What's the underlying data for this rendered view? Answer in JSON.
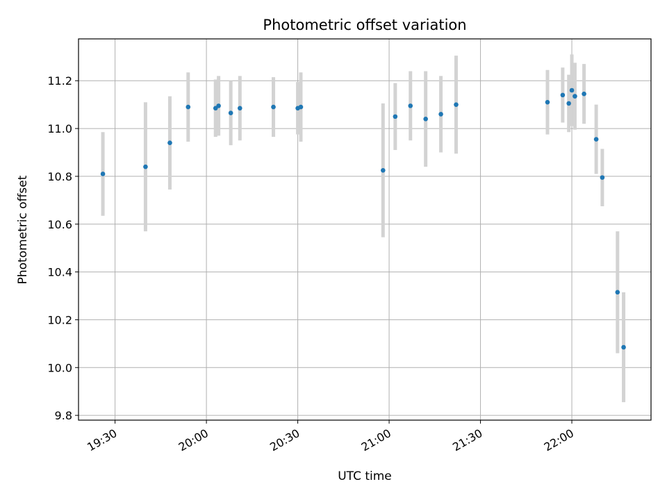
{
  "chart_data": {
    "type": "scatter",
    "title": "Photometric offset variation",
    "xlabel": "UTC time",
    "ylabel": "Photometric offset",
    "x_unit": "UTC time (HH:MM)",
    "xlim": [
      "19:18",
      "22:26"
    ],
    "ylim": [
      9.78,
      11.375
    ],
    "x_ticks": [
      "19:30",
      "20:00",
      "20:30",
      "21:00",
      "21:30",
      "22:00"
    ],
    "y_ticks": [
      9.8,
      10.0,
      10.2,
      10.4,
      10.6,
      10.8,
      11.0,
      11.2
    ],
    "y_tick_labels": [
      "9.8",
      "10.0",
      "10.2",
      "10.4",
      "10.6",
      "10.8",
      "11.0",
      "11.2"
    ],
    "grid": true,
    "point_color": "#1f77b4",
    "errorbar_color": "#d3d3d3",
    "points": [
      {
        "t": "19:26",
        "y": 10.81,
        "err": 0.175
      },
      {
        "t": "19:40",
        "y": 10.84,
        "err": 0.27
      },
      {
        "t": "19:48",
        "y": 10.94,
        "err": 0.195
      },
      {
        "t": "19:54",
        "y": 11.09,
        "err": 0.145
      },
      {
        "t": "20:03",
        "y": 11.085,
        "err": 0.12
      },
      {
        "t": "20:04",
        "y": 11.095,
        "err": 0.125
      },
      {
        "t": "20:08",
        "y": 11.065,
        "err": 0.135
      },
      {
        "t": "20:11",
        "y": 11.085,
        "err": 0.135
      },
      {
        "t": "20:22",
        "y": 11.09,
        "err": 0.125
      },
      {
        "t": "20:30",
        "y": 11.085,
        "err": 0.11
      },
      {
        "t": "20:31",
        "y": 11.09,
        "err": 0.145
      },
      {
        "t": "20:58",
        "y": 10.825,
        "err": 0.28
      },
      {
        "t": "21:02",
        "y": 11.05,
        "err": 0.14
      },
      {
        "t": "21:07",
        "y": 11.095,
        "err": 0.145
      },
      {
        "t": "21:12",
        "y": 11.04,
        "err": 0.2
      },
      {
        "t": "21:17",
        "y": 11.06,
        "err": 0.16
      },
      {
        "t": "21:22",
        "y": 11.1,
        "err": 0.205
      },
      {
        "t": "21:52",
        "y": 11.11,
        "err": 0.135
      },
      {
        "t": "21:57",
        "y": 11.14,
        "err": 0.115
      },
      {
        "t": "21:59",
        "y": 11.105,
        "err": 0.12
      },
      {
        "t": "22:00",
        "y": 11.16,
        "err": 0.15
      },
      {
        "t": "22:01",
        "y": 11.135,
        "err": 0.14
      },
      {
        "t": "22:04",
        "y": 11.145,
        "err": 0.125
      },
      {
        "t": "22:08",
        "y": 10.955,
        "err": 0.145
      },
      {
        "t": "22:10",
        "y": 10.795,
        "err": 0.12
      },
      {
        "t": "22:15",
        "y": 10.315,
        "err": 0.255
      },
      {
        "t": "22:17",
        "y": 10.085,
        "err": 0.23
      }
    ]
  }
}
